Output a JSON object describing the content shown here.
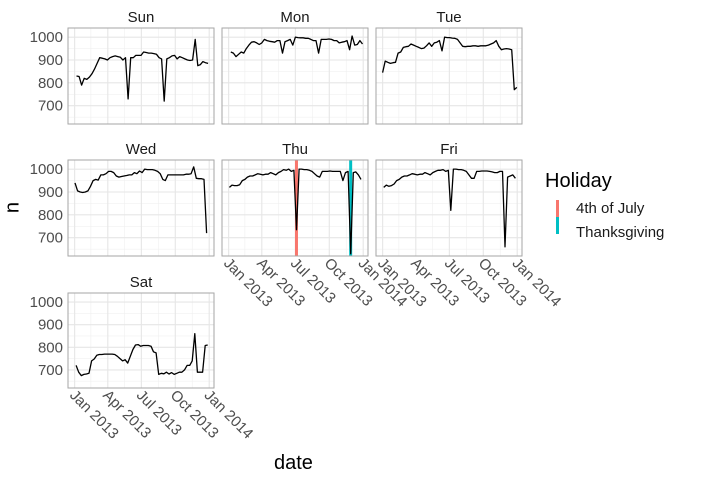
{
  "chart_data": {
    "type": "line",
    "xlabel": "date",
    "ylabel": "n",
    "xlim": [
      "2012-12-14",
      "2014-01-14"
    ],
    "ylim": [
      620,
      1040
    ],
    "grid": true,
    "x_ticks": [
      {
        "date": "2013-01-01",
        "label": "Jan 2013"
      },
      {
        "date": "2013-04-01",
        "label": "Apr 2013"
      },
      {
        "date": "2013-07-01",
        "label": "Jul 2013"
      },
      {
        "date": "2013-10-01",
        "label": "Oct 2013"
      },
      {
        "date": "2014-01-01",
        "label": "Jan 2014"
      }
    ],
    "y_ticks": [
      700,
      800,
      900,
      1000
    ],
    "x_step_days": 7,
    "facets": [
      {
        "label": "Sun",
        "start": "2013-01-06",
        "values": [
          830,
          828,
          790,
          820,
          815,
          825,
          840,
          860,
          885,
          910,
          908,
          905,
          900,
          910,
          915,
          918,
          915,
          912,
          900,
          910,
          730,
          910,
          910,
          920,
          920,
          920,
          935,
          933,
          930,
          930,
          928,
          925,
          910,
          905,
          720,
          905,
          910,
          918,
          920,
          905,
          915,
          910,
          905,
          900,
          898,
          900,
          990,
          875,
          880,
          893,
          888,
          885
        ]
      },
      {
        "label": "Mon",
        "start": "2013-01-07",
        "values": [
          935,
          930,
          915,
          925,
          935,
          930,
          950,
          965,
          978,
          980,
          975,
          968,
          975,
          990,
          985,
          982,
          980,
          978,
          985,
          985,
          930,
          980,
          985,
          990,
          965,
          1000,
          998,
          997,
          997,
          995,
          995,
          990,
          985,
          985,
          930,
          990,
          990,
          990,
          992,
          990,
          985,
          985,
          975,
          978,
          980,
          985,
          945,
          1005,
          965,
          968,
          985,
          970
        ]
      },
      {
        "label": "Tue",
        "start": "2013-01-01",
        "values": [
          845,
          895,
          890,
          885,
          888,
          890,
          930,
          935,
          955,
          958,
          960,
          970,
          965,
          960,
          955,
          950,
          952,
          962,
          975,
          960,
          975,
          978,
          985,
          940,
          1000,
          998,
          998,
          996,
          995,
          990,
          975,
          960,
          958,
          960,
          960,
          962,
          962,
          960,
          962,
          962,
          962,
          965,
          970,
          975,
          985,
          960,
          945,
          948,
          950,
          948,
          945,
          770,
          780
        ]
      },
      {
        "label": "Wed",
        "start": "2013-01-02",
        "values": [
          940,
          905,
          900,
          898,
          900,
          905,
          925,
          950,
          955,
          952,
          975,
          975,
          980,
          990,
          990,
          985,
          970,
          965,
          968,
          970,
          972,
          975,
          975,
          985,
          980,
          992,
          985,
          1000,
          998,
          998,
          998,
          995,
          990,
          980,
          955,
          950,
          975,
          975,
          975,
          975,
          975,
          975,
          975,
          978,
          978,
          980,
          1010,
          960,
          958,
          958,
          955,
          720
        ]
      },
      {
        "label": "Thu",
        "start": "2013-01-03",
        "values": [
          920,
          930,
          928,
          928,
          932,
          950,
          955,
          965,
          970,
          970,
          975,
          980,
          978,
          975,
          978,
          978,
          985,
          980,
          975,
          985,
          990,
          998,
          995,
          1000,
          990,
          995,
          735,
          1000,
          1000,
          998,
          998,
          995,
          990,
          980,
          970,
          965,
          990,
          990,
          990,
          992,
          990,
          990,
          990,
          990,
          950,
          985,
          990,
          630,
          985,
          988,
          975,
          955
        ]
      },
      {
        "label": "Fri",
        "start": "2013-01-04",
        "values": [
          920,
          930,
          925,
          928,
          935,
          950,
          955,
          965,
          970,
          970,
          975,
          980,
          978,
          975,
          978,
          978,
          985,
          980,
          975,
          985,
          990,
          995,
          995,
          998,
          990,
          995,
          820,
          1000,
          1000,
          998,
          998,
          995,
          990,
          975,
          960,
          960,
          990,
          990,
          992,
          992,
          992,
          990,
          988,
          985,
          985,
          990,
          990,
          660,
          965,
          970,
          975,
          960
        ]
      },
      {
        "label": "Sat",
        "start": "2013-01-05",
        "values": [
          720,
          690,
          675,
          680,
          682,
          685,
          740,
          748,
          765,
          768,
          768,
          770,
          770,
          770,
          770,
          768,
          760,
          750,
          740,
          745,
          730,
          760,
          790,
          810,
          812,
          805,
          808,
          808,
          808,
          805,
          780,
          775,
          680,
          685,
          683,
          690,
          682,
          688,
          680,
          685,
          690,
          690,
          700,
          720,
          720,
          740,
          860,
          690,
          690,
          690,
          808,
          810
        ]
      }
    ],
    "holidays": [
      {
        "name": "4th of July",
        "date": "2013-07-04",
        "facet": "Thu",
        "color": "#F8766D"
      },
      {
        "name": "Thanksgiving",
        "date": "2013-11-28",
        "facet": "Thu",
        "color": "#00BFC4"
      }
    ],
    "legend": {
      "title": "Holiday",
      "position": "right"
    }
  }
}
